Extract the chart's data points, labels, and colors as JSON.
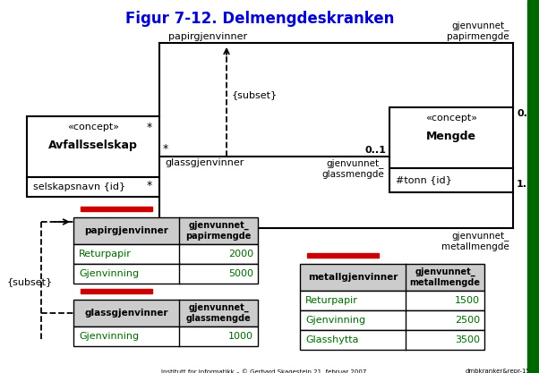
{
  "title": "Figur 7-12. Delmengdeskranken",
  "bg_color": "#ffffff",
  "title_color": "#0000cc",
  "title_fontsize": 12,
  "green_color": "#006600",
  "red_color": "#cc0000",
  "header_bg": "#cccccc",
  "footer_text_left": "Institutt for informatikk – © Gerhard Skagestein 21. februar 2007",
  "footer_text_right": "dmbkranker&repr-15",
  "right_border_color": "#006600",
  "avfall_box": {
    "stereotype": "«concept»",
    "name": "Avfallsselskap",
    "attr": "selskapsnavn {id}"
  },
  "mengde_box": {
    "stereotype": "«concept»",
    "name": "Mengde",
    "attr": "#tonn {id}"
  },
  "papir_table": {
    "col1": "papirgjenvinner",
    "col2": "gjenvunnet_\npapirmengde",
    "rows": [
      [
        "Returpapir",
        "2000"
      ],
      [
        "Gjenvinning",
        "5000"
      ]
    ]
  },
  "glass_table": {
    "col1": "glassgjenvinner",
    "col2": "gjenvunnet_\nglassmengde",
    "rows": [
      [
        "Gjenvinning",
        "1000"
      ]
    ]
  },
  "metall_table": {
    "col1": "metallgjenvinner",
    "col2": "gjenvunnet_\nmetallmengde",
    "rows": [
      [
        "Returpapir",
        "1500"
      ],
      [
        "Gjenvinning",
        "2500"
      ],
      [
        "Glasshytta",
        "3500"
      ]
    ]
  }
}
